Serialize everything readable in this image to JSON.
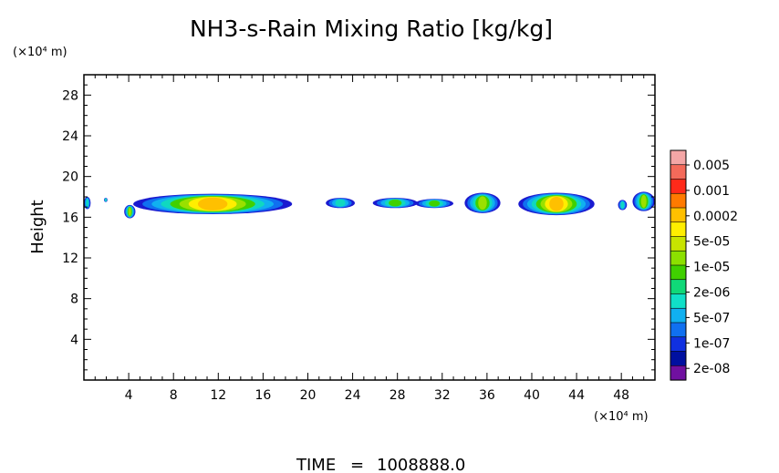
{
  "chart_data": {
    "type": "heatmap",
    "title": "NH3-s-Rain Mixing Ratio [kg/kg]",
    "xlabel": "",
    "x_unit": "(×10⁴ m)",
    "ylabel": "Height",
    "y_unit": "(×10⁴ m)",
    "xlim": [
      0,
      51
    ],
    "ylim": [
      0,
      30
    ],
    "x_ticks": [
      4,
      8,
      12,
      16,
      20,
      24,
      28,
      32,
      36,
      40,
      44,
      48
    ],
    "y_ticks": [
      4,
      8,
      12,
      16,
      20,
      24,
      28
    ],
    "x_tick_labels": [
      "4",
      "8",
      "12",
      "16",
      "20",
      "24",
      "28",
      "32",
      "36",
      "40",
      "44",
      "48"
    ],
    "y_tick_labels": [
      "4",
      "8",
      "12",
      "16",
      "20",
      "24",
      "28"
    ],
    "colorbar": {
      "labels": [
        "0.005",
        "0.001",
        "0.0002",
        "5e-05",
        "1e-05",
        "2e-06",
        "5e-07",
        "1e-07",
        "2e-08"
      ],
      "colors_top_to_bottom": [
        "#f4a6a6",
        "#f46a5a",
        "#ff2a1a",
        "#ff7a00",
        "#ffc000",
        "#ffee00",
        "#c8e400",
        "#8ce000",
        "#40d000",
        "#10d878",
        "#10e0c8",
        "#10b0f0",
        "#1070f0",
        "#1030e0",
        "#0010a0",
        "#7010a0"
      ]
    },
    "regions": [
      {
        "x": [
          0,
          0.6
        ],
        "y": [
          16.8,
          18.0
        ],
        "peak": "5e-07"
      },
      {
        "x": [
          1.8,
          2.1
        ],
        "y": [
          17.5,
          17.9
        ],
        "peak": "5e-07"
      },
      {
        "x": [
          3.6,
          4.6
        ],
        "y": [
          15.9,
          17.2
        ],
        "peak": "1e-05"
      },
      {
        "x": [
          4.4,
          18.6
        ],
        "y": [
          16.3,
          18.3
        ],
        "peak": "5e-05"
      },
      {
        "x": [
          21.6,
          24.2
        ],
        "y": [
          16.9,
          17.9
        ],
        "peak": "5e-07"
      },
      {
        "x": [
          25.8,
          29.8
        ],
        "y": [
          16.9,
          17.9
        ],
        "peak": "2e-06"
      },
      {
        "x": [
          29.6,
          33.0
        ],
        "y": [
          16.9,
          17.8
        ],
        "peak": "2e-06"
      },
      {
        "x": [
          34.0,
          37.2
        ],
        "y": [
          16.4,
          18.4
        ],
        "peak": "1e-05"
      },
      {
        "x": [
          38.8,
          45.6
        ],
        "y": [
          16.2,
          18.4
        ],
        "peak": "5e-05"
      },
      {
        "x": [
          47.7,
          48.5
        ],
        "y": [
          16.7,
          17.7
        ],
        "peak": "5e-07"
      },
      {
        "x": [
          49.0,
          51.0
        ],
        "y": [
          16.6,
          18.5
        ],
        "peak": "1e-05"
      }
    ]
  },
  "footer": {
    "time_label": "TIME",
    "time_eq": "=",
    "time_value": "1008888.0"
  }
}
